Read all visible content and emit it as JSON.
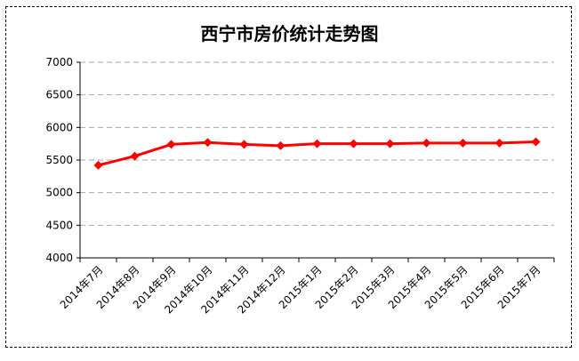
{
  "chart_data": {
    "type": "line",
    "title": "西宁市房价统计走势图",
    "xlabel": "",
    "ylabel": "",
    "categories": [
      "2014年7月",
      "2014年8月",
      "2014年9月",
      "2014年10月",
      "2014年11月",
      "2014年12月",
      "2015年1月",
      "2015年2月",
      "2015年3月",
      "2015年4月",
      "2015年5月",
      "2015年6月",
      "2015年7月"
    ],
    "series": [
      {
        "values": [
          5420,
          5560,
          5740,
          5770,
          5740,
          5720,
          5750,
          5750,
          5750,
          5760,
          5760,
          5760,
          5780
        ]
      }
    ],
    "ylim": [
      4000,
      7000
    ],
    "yticks": [
      4000,
      4500,
      5000,
      5500,
      6000,
      6500,
      7000
    ],
    "grid": "horizontal-dashed",
    "legend": "none",
    "colors": {
      "line": "#ff0000",
      "marker": "#ff0000",
      "grid": "#aaaaaa"
    }
  }
}
